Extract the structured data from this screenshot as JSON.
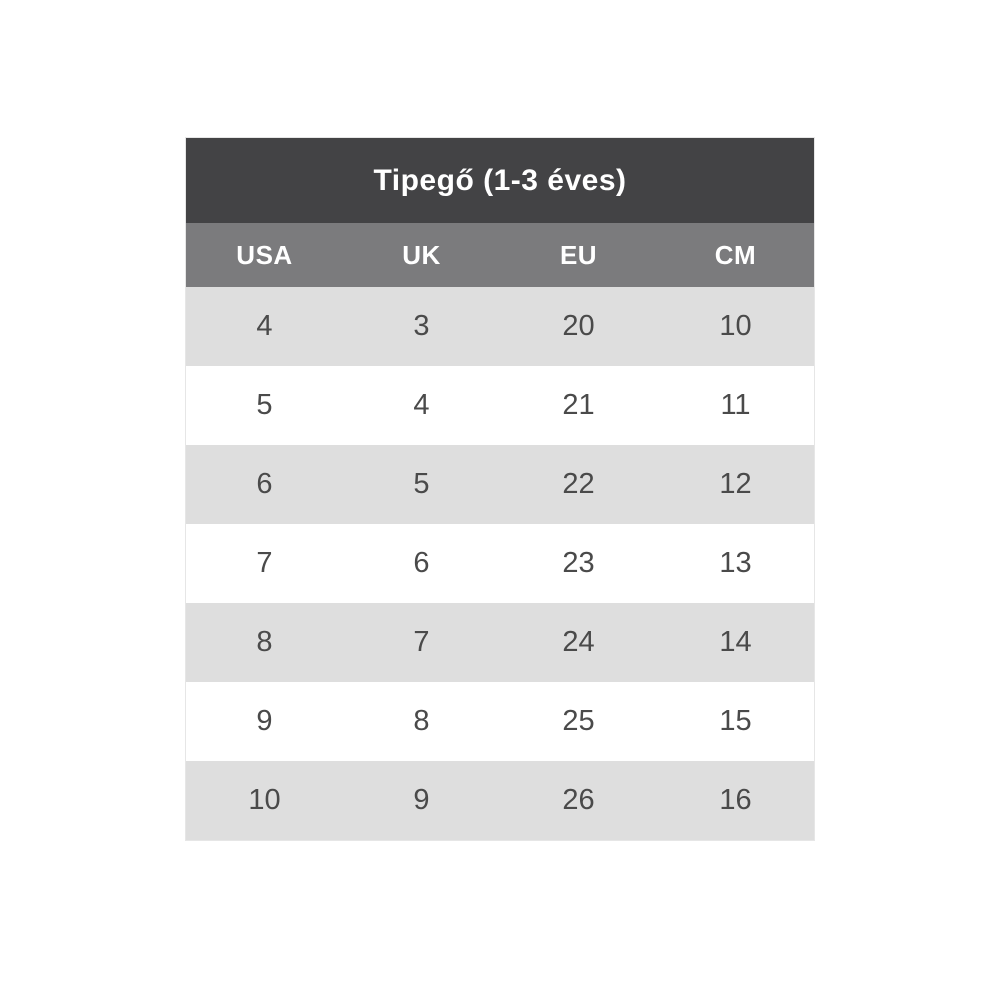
{
  "size_chart": {
    "title": "Tipegő (1-3 éves)",
    "columns": [
      "USA",
      "UK",
      "EU",
      "CM"
    ],
    "rows": [
      [
        "4",
        "3",
        "20",
        "10"
      ],
      [
        "5",
        "4",
        "21",
        "11"
      ],
      [
        "6",
        "5",
        "22",
        "12"
      ],
      [
        "7",
        "6",
        "23",
        "13"
      ],
      [
        "8",
        "7",
        "24",
        "14"
      ],
      [
        "9",
        "8",
        "25",
        "15"
      ],
      [
        "10",
        "9",
        "26",
        "16"
      ]
    ],
    "colors": {
      "title_bg": "#434345",
      "title_text": "#ffffff",
      "header_bg": "#7b7b7d",
      "header_text": "#ffffff",
      "row_alt_bg": "#dedede",
      "row_bg": "#ffffff",
      "cell_text": "#4a4a4a"
    }
  },
  "chart_data": {
    "type": "table",
    "title": "Tipegő (1-3 éves)",
    "columns": [
      "USA",
      "UK",
      "EU",
      "CM"
    ],
    "rows": [
      [
        4,
        3,
        20,
        10
      ],
      [
        5,
        4,
        21,
        11
      ],
      [
        6,
        5,
        22,
        12
      ],
      [
        7,
        6,
        23,
        13
      ],
      [
        8,
        7,
        24,
        14
      ],
      [
        9,
        8,
        25,
        15
      ],
      [
        10,
        9,
        26,
        16
      ]
    ],
    "layout": {
      "header_style": "dark-title-over-gray-columns",
      "row_striping": "first-data-row-gray-then-alternating",
      "text_alignment": "center"
    }
  }
}
